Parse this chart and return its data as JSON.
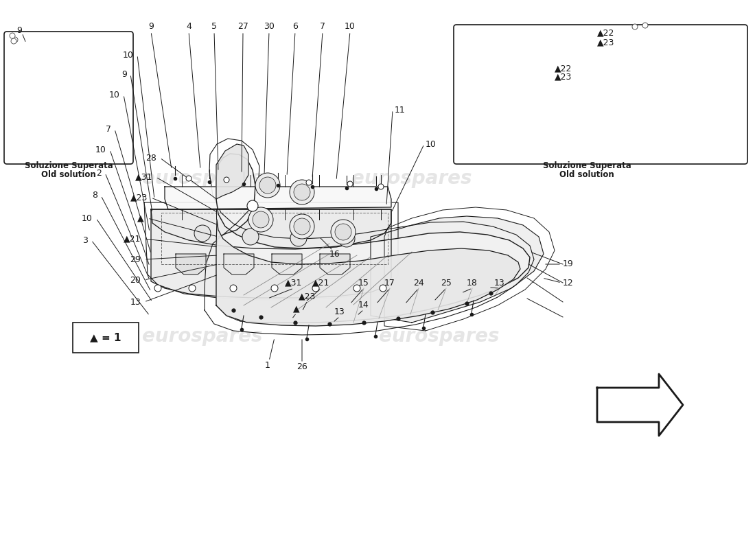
{
  "bg_color": "#ffffff",
  "watermark_color": "#d0d0d0",
  "inset_left_label1": "Soluzione Superata",
  "inset_left_label2": "Old solution",
  "inset_right_label1": "Soluzione Superata",
  "inset_right_label2": "Old solution",
  "legend_text": "▲ = 1",
  "font_size": 9,
  "line_color": "#1a1a1a"
}
